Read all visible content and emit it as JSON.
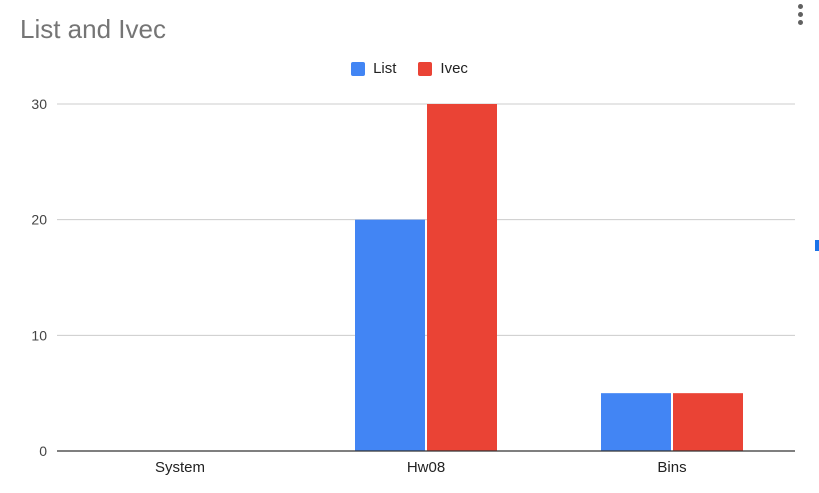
{
  "chart_data": {
    "type": "bar",
    "title": "List and Ivec",
    "categories": [
      "System",
      "Hw08",
      "Bins"
    ],
    "series": [
      {
        "name": "List",
        "values": [
          0,
          20,
          5
        ],
        "color": "#4285f4"
      },
      {
        "name": "Ivec",
        "values": [
          0,
          30,
          5
        ],
        "color": "#ea4335"
      }
    ],
    "ylim": [
      0,
      30
    ],
    "yticks": [
      0,
      10,
      20,
      30
    ],
    "xlabel": "",
    "ylabel": "",
    "grid": true,
    "legend": "top-center"
  },
  "ui": {
    "menu_icon": "more-vert-icon"
  }
}
